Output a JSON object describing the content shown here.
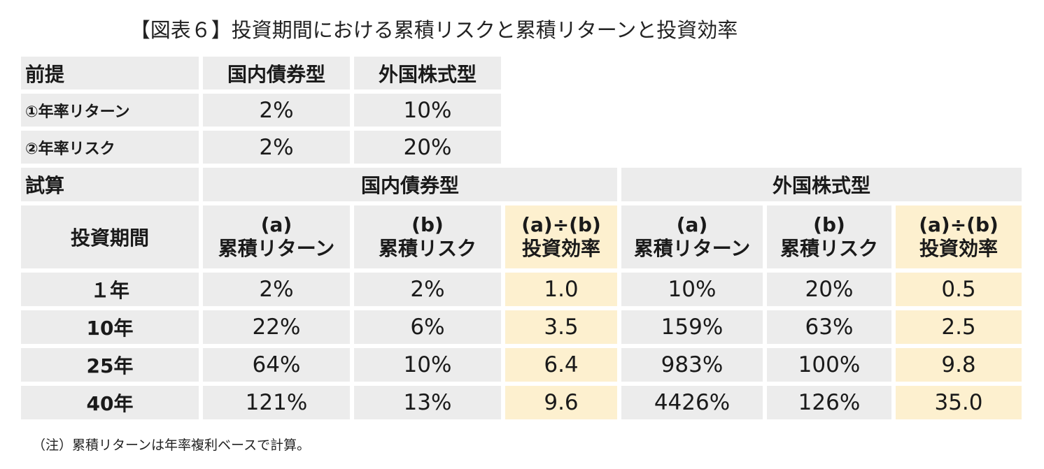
{
  "title": "【図表６】投資期間における累積リスクと累積リターンと投資効率",
  "premise": {
    "label": "前提",
    "col_bond": "国内債券型",
    "col_stock": "外国株式型",
    "rows": [
      {
        "label": "①年率リターン",
        "bond": "2%",
        "stock": "10%"
      },
      {
        "label": "②年率リスク",
        "bond": "2%",
        "stock": "20%"
      }
    ]
  },
  "calc": {
    "label": "試算",
    "group_bond": "国内債券型",
    "group_stock": "外国株式型",
    "period_label": "投資期間",
    "sub_a_line1": "(a)",
    "sub_a_line2": "累積リターン",
    "sub_b_line1": "(b)",
    "sub_b_line2": "累積リスク",
    "sub_eff_line1": "(a)÷(b)",
    "sub_eff_line2": "投資効率",
    "rows": [
      {
        "period": "１年",
        "bond_return": "2%",
        "bond_risk": "2%",
        "bond_eff": "1.0",
        "stock_return": "10%",
        "stock_risk": "20%",
        "stock_eff": "0.5"
      },
      {
        "period": "10年",
        "bond_return": "22%",
        "bond_risk": "6%",
        "bond_eff": "3.5",
        "stock_return": "159%",
        "stock_risk": "63%",
        "stock_eff": "2.5"
      },
      {
        "period": "25年",
        "bond_return": "64%",
        "bond_risk": "10%",
        "bond_eff": "6.4",
        "stock_return": "983%",
        "stock_risk": "100%",
        "stock_eff": "9.8"
      },
      {
        "period": "40年",
        "bond_return": "121%",
        "bond_risk": "13%",
        "bond_eff": "9.6",
        "stock_return": "4426%",
        "stock_risk": "126%",
        "stock_eff": "35.0"
      }
    ]
  },
  "note": "（注）累積リターンは年率複利ベースで計算。",
  "colors": {
    "cell_gray": "#ececec",
    "cell_yellow": "#fdf0cf"
  }
}
